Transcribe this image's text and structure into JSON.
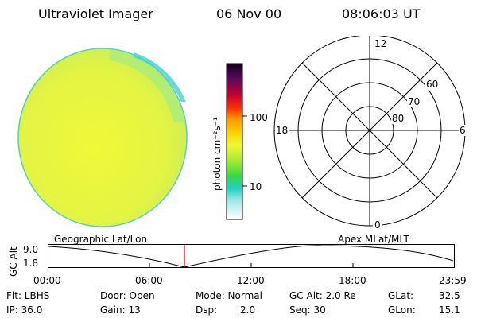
{
  "header": {
    "title": "Ultraviolet Imager",
    "date": "06 Nov 00",
    "time": "08:06:03 UT"
  },
  "colorbar": {
    "label": "photon cm⁻²s⁻¹",
    "ticks": [
      "100",
      "10"
    ]
  },
  "polar": {
    "mlt_labels": {
      "top": "12",
      "bottom": "0",
      "left": "18",
      "right": "6"
    },
    "lat_labels": [
      "60",
      "70",
      "80"
    ]
  },
  "timeline": {
    "left_title": "Geographic Lat/Lon",
    "right_title": "Apex MLat/MLT",
    "axis_title": "GC Alt",
    "y_ticks": [
      "9.0",
      "1.8"
    ],
    "x_ticks": [
      "00:00",
      "06:00",
      "12:00",
      "18:00",
      "23:59"
    ],
    "marker_color": "#cc0000"
  },
  "status": {
    "flt": "Flt: LBHS",
    "ip": "IP: 36.0",
    "door": "Door: Open",
    "gain": "Gain: 13",
    "mode": "Mode: Normal",
    "dsp": "Dsp:",
    "dsp_val": "2.0",
    "gcalt": "GC Alt: 2.0 Re",
    "seq": "Seq: 30",
    "glat": "GLat:",
    "glat_val": "32.5",
    "glon": "GLon:",
    "glon_val": "15.1"
  },
  "colors": {
    "disk_base": "#e9f53c",
    "disk_limb": "#8fe27a",
    "disk_edge": "#2ec8d8"
  }
}
